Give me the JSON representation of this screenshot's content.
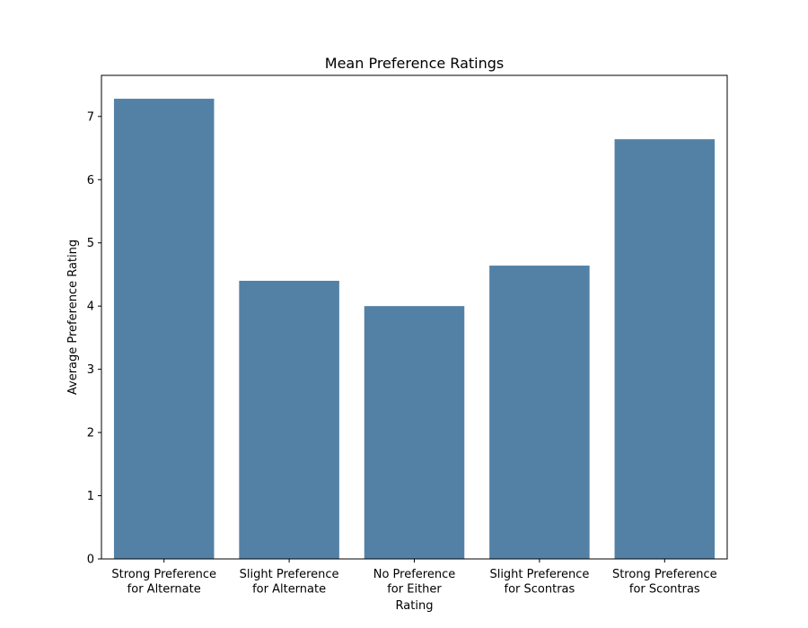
{
  "chart_data": {
    "type": "bar",
    "title": "Mean Preference Ratings",
    "xlabel": "Rating",
    "ylabel": "Average Preference Rating",
    "categories": [
      [
        "Strong Preference",
        "for Alternate"
      ],
      [
        "Slight Preference",
        "for Alternate"
      ],
      [
        "No Preference",
        "for Either"
      ],
      [
        "Slight Preference",
        "for Scontras"
      ],
      [
        "Strong Preference",
        "for Scontras"
      ]
    ],
    "values": [
      7.28,
      4.4,
      4.0,
      4.64,
      6.64
    ],
    "ylim": [
      0,
      7.65
    ],
    "yticks": [
      0,
      1,
      2,
      3,
      4,
      5,
      6,
      7
    ],
    "grid": false,
    "bar_color": "#5381a6"
  }
}
